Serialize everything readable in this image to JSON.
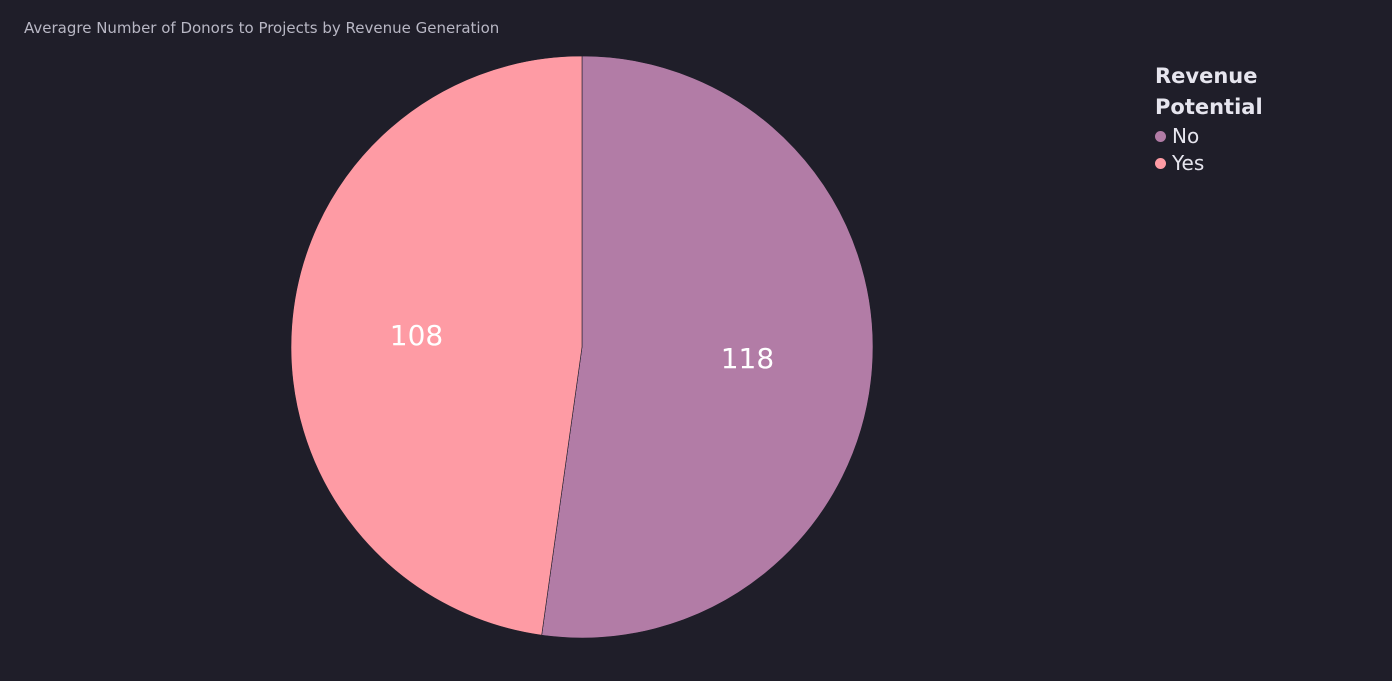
{
  "chart_data": {
    "type": "pie",
    "title": "Averagre Number of Donors to Projects by Revenue Generation",
    "legend": {
      "title": "Revenue Potential",
      "placement": "top-right"
    },
    "slices": [
      {
        "label": "No",
        "value": 118,
        "color": "#b27ca6"
      },
      {
        "label": "Yes",
        "value": 108,
        "color": "#fe9ba4"
      }
    ],
    "start_angle_deg": 0,
    "direction": "clockwise"
  },
  "colors": {
    "background": "#1f1e29",
    "title_text": "#b8b7c4",
    "legend_text": "#e6e5ee"
  }
}
